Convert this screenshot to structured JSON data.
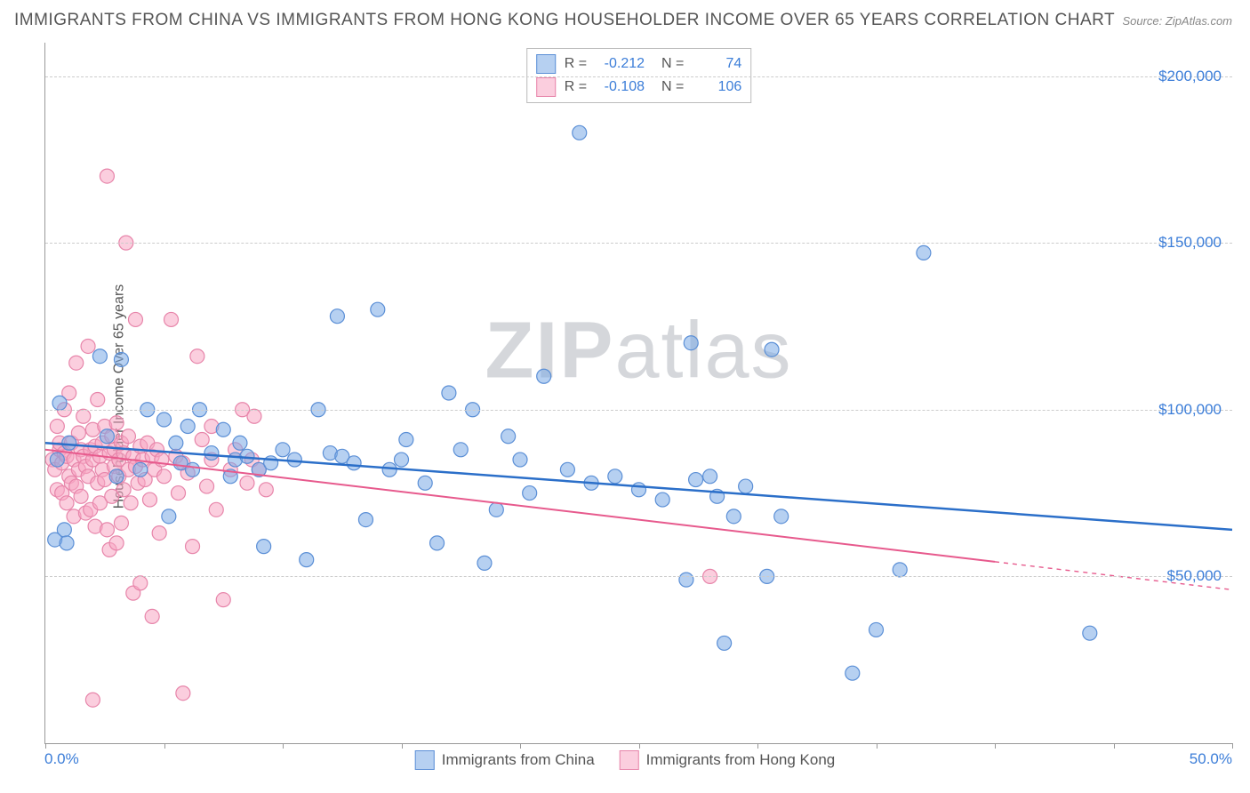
{
  "title": "IMMIGRANTS FROM CHINA VS IMMIGRANTS FROM HONG KONG HOUSEHOLDER INCOME OVER 65 YEARS CORRELATION CHART",
  "source_label": "Source: ZipAtlas.com",
  "y_axis_label": "Householder Income Over 65 years",
  "watermark_bold": "ZIP",
  "watermark_rest": "atlas",
  "chart": {
    "type": "scatter",
    "xlim": [
      0,
      50
    ],
    "ylim": [
      0,
      210000
    ],
    "x_tick_labels": {
      "min": "0.0%",
      "max": "50.0%"
    },
    "x_tick_marks": [
      0,
      5,
      10,
      15,
      20,
      25,
      30,
      35,
      40,
      45,
      50
    ],
    "y_gridlines": [
      50000,
      100000,
      150000,
      200000
    ],
    "y_tick_labels": [
      "$50,000",
      "$100,000",
      "$150,000",
      "$200,000"
    ],
    "background_color": "#ffffff",
    "grid_color": "#cccccc",
    "axis_color": "#999999",
    "tick_label_color": "#3b7dd8",
    "marker_radius": 8,
    "marker_opacity": 0.55,
    "series": [
      {
        "name": "Immigrants from China",
        "fill_color": "#7aaae6",
        "stroke_color": "#5b8fd6",
        "r_value": "-0.212",
        "n_value": "74",
        "trend": {
          "x1": 0,
          "y1": 90000,
          "x2": 50,
          "y2": 64000,
          "color": "#2b6fc9",
          "width": 2.5,
          "solid_until_x": 50
        },
        "points": [
          [
            0.4,
            61000
          ],
          [
            0.5,
            85000
          ],
          [
            0.6,
            102000
          ],
          [
            0.8,
            64000
          ],
          [
            0.9,
            60000
          ],
          [
            1.0,
            90000
          ],
          [
            2.3,
            116000
          ],
          [
            2.6,
            92000
          ],
          [
            3.0,
            80000
          ],
          [
            3.2,
            115000
          ],
          [
            4.0,
            82000
          ],
          [
            4.3,
            100000
          ],
          [
            5.0,
            97000
          ],
          [
            5.2,
            68000
          ],
          [
            5.5,
            90000
          ],
          [
            5.7,
            84000
          ],
          [
            6.0,
            95000
          ],
          [
            6.2,
            82000
          ],
          [
            6.5,
            100000
          ],
          [
            7.0,
            87000
          ],
          [
            7.5,
            94000
          ],
          [
            7.8,
            80000
          ],
          [
            8.0,
            85000
          ],
          [
            8.2,
            90000
          ],
          [
            8.5,
            86000
          ],
          [
            9.0,
            82000
          ],
          [
            9.2,
            59000
          ],
          [
            9.5,
            84000
          ],
          [
            10.0,
            88000
          ],
          [
            10.5,
            85000
          ],
          [
            11.0,
            55000
          ],
          [
            11.5,
            100000
          ],
          [
            12.0,
            87000
          ],
          [
            12.3,
            128000
          ],
          [
            12.5,
            86000
          ],
          [
            13.0,
            84000
          ],
          [
            13.5,
            67000
          ],
          [
            14.0,
            130000
          ],
          [
            14.5,
            82000
          ],
          [
            15.0,
            85000
          ],
          [
            15.2,
            91000
          ],
          [
            16.0,
            78000
          ],
          [
            16.5,
            60000
          ],
          [
            17.0,
            105000
          ],
          [
            17.5,
            88000
          ],
          [
            18.0,
            100000
          ],
          [
            18.5,
            54000
          ],
          [
            19.0,
            70000
          ],
          [
            19.5,
            92000
          ],
          [
            20.0,
            85000
          ],
          [
            20.4,
            75000
          ],
          [
            21.0,
            110000
          ],
          [
            22.0,
            82000
          ],
          [
            22.5,
            183000
          ],
          [
            23.0,
            78000
          ],
          [
            24.0,
            80000
          ],
          [
            25.0,
            76000
          ],
          [
            26.0,
            73000
          ],
          [
            27.0,
            49000
          ],
          [
            27.2,
            120000
          ],
          [
            27.4,
            79000
          ],
          [
            28.0,
            80000
          ],
          [
            28.3,
            74000
          ],
          [
            28.6,
            30000
          ],
          [
            29.0,
            68000
          ],
          [
            29.5,
            77000
          ],
          [
            30.6,
            118000
          ],
          [
            30.4,
            50000
          ],
          [
            31.0,
            68000
          ],
          [
            34.0,
            21000
          ],
          [
            35.0,
            34000
          ],
          [
            36.0,
            52000
          ],
          [
            37.0,
            147000
          ],
          [
            44.0,
            33000
          ]
        ]
      },
      {
        "name": "Immigrants from Hong Kong",
        "fill_color": "#f8a5c2",
        "stroke_color": "#e785aa",
        "r_value": "-0.108",
        "n_value": "106",
        "trend": {
          "x1": 0,
          "y1": 88000,
          "x2": 50,
          "y2": 46000,
          "color": "#e75a8d",
          "width": 2,
          "solid_until_x": 40
        },
        "points": [
          [
            0.3,
            85000
          ],
          [
            0.4,
            82000
          ],
          [
            0.5,
            95000
          ],
          [
            0.5,
            76000
          ],
          [
            0.6,
            88000
          ],
          [
            0.6,
            90000
          ],
          [
            0.7,
            84000
          ],
          [
            0.7,
            75000
          ],
          [
            0.8,
            100000
          ],
          [
            0.8,
            87000
          ],
          [
            0.9,
            72000
          ],
          [
            0.9,
            86000
          ],
          [
            1.0,
            105000
          ],
          [
            1.0,
            80000
          ],
          [
            1.1,
            78000
          ],
          [
            1.1,
            90000
          ],
          [
            1.2,
            85000
          ],
          [
            1.2,
            68000
          ],
          [
            1.3,
            77000
          ],
          [
            1.3,
            114000
          ],
          [
            1.4,
            93000
          ],
          [
            1.4,
            82000
          ],
          [
            1.5,
            88000
          ],
          [
            1.5,
            74000
          ],
          [
            1.6,
            98000
          ],
          [
            1.6,
            86000
          ],
          [
            1.7,
            69000
          ],
          [
            1.7,
            83000
          ],
          [
            1.8,
            119000
          ],
          [
            1.8,
            80000
          ],
          [
            1.9,
            88000
          ],
          [
            1.9,
            70000
          ],
          [
            2.0,
            94000
          ],
          [
            2.0,
            85000
          ],
          [
            2.1,
            65000
          ],
          [
            2.1,
            89000
          ],
          [
            2.2,
            78000
          ],
          [
            2.2,
            103000
          ],
          [
            2.3,
            86000
          ],
          [
            2.3,
            72000
          ],
          [
            2.4,
            90000
          ],
          [
            2.4,
            82000
          ],
          [
            2.5,
            79000
          ],
          [
            2.5,
            95000
          ],
          [
            2.6,
            170000
          ],
          [
            2.6,
            64000
          ],
          [
            2.7,
            87000
          ],
          [
            2.7,
            58000
          ],
          [
            2.8,
            92000
          ],
          [
            2.8,
            74000
          ],
          [
            2.9,
            83000
          ],
          [
            2.9,
            88000
          ],
          [
            3.0,
            60000
          ],
          [
            3.0,
            96000
          ],
          [
            3.1,
            80000
          ],
          [
            3.1,
            85000
          ],
          [
            3.2,
            66000
          ],
          [
            3.2,
            90000
          ],
          [
            3.3,
            76000
          ],
          [
            3.3,
            87000
          ],
          [
            3.4,
            150000
          ],
          [
            3.5,
            82000
          ],
          [
            3.5,
            92000
          ],
          [
            3.6,
            72000
          ],
          [
            3.7,
            86000
          ],
          [
            3.7,
            45000
          ],
          [
            3.8,
            83000
          ],
          [
            3.8,
            127000
          ],
          [
            3.9,
            78000
          ],
          [
            4.0,
            89000
          ],
          [
            4.0,
            48000
          ],
          [
            4.1,
            85000
          ],
          [
            4.2,
            79000
          ],
          [
            4.3,
            90000
          ],
          [
            4.4,
            73000
          ],
          [
            4.5,
            86000
          ],
          [
            4.5,
            38000
          ],
          [
            4.6,
            82000
          ],
          [
            4.7,
            88000
          ],
          [
            4.8,
            63000
          ],
          [
            4.9,
            85000
          ],
          [
            5.0,
            80000
          ],
          [
            5.3,
            127000
          ],
          [
            5.5,
            86000
          ],
          [
            5.6,
            75000
          ],
          [
            5.8,
            84000
          ],
          [
            5.8,
            15000
          ],
          [
            6.0,
            81000
          ],
          [
            6.2,
            59000
          ],
          [
            6.4,
            116000
          ],
          [
            6.6,
            91000
          ],
          [
            6.8,
            77000
          ],
          [
            7.0,
            85000
          ],
          [
            7.2,
            70000
          ],
          [
            7.5,
            43000
          ],
          [
            7.8,
            82000
          ],
          [
            8.0,
            88000
          ],
          [
            8.3,
            100000
          ],
          [
            8.5,
            78000
          ],
          [
            8.7,
            85000
          ],
          [
            8.8,
            98000
          ],
          [
            9.0,
            82000
          ],
          [
            9.3,
            76000
          ],
          [
            2.0,
            13000
          ],
          [
            28.0,
            50000
          ],
          [
            7.0,
            95000
          ]
        ]
      }
    ]
  },
  "legend_bottom": [
    {
      "label": "Immigrants from China",
      "swatch": "blue"
    },
    {
      "label": "Immigrants from Hong Kong",
      "swatch": "pink"
    }
  ]
}
